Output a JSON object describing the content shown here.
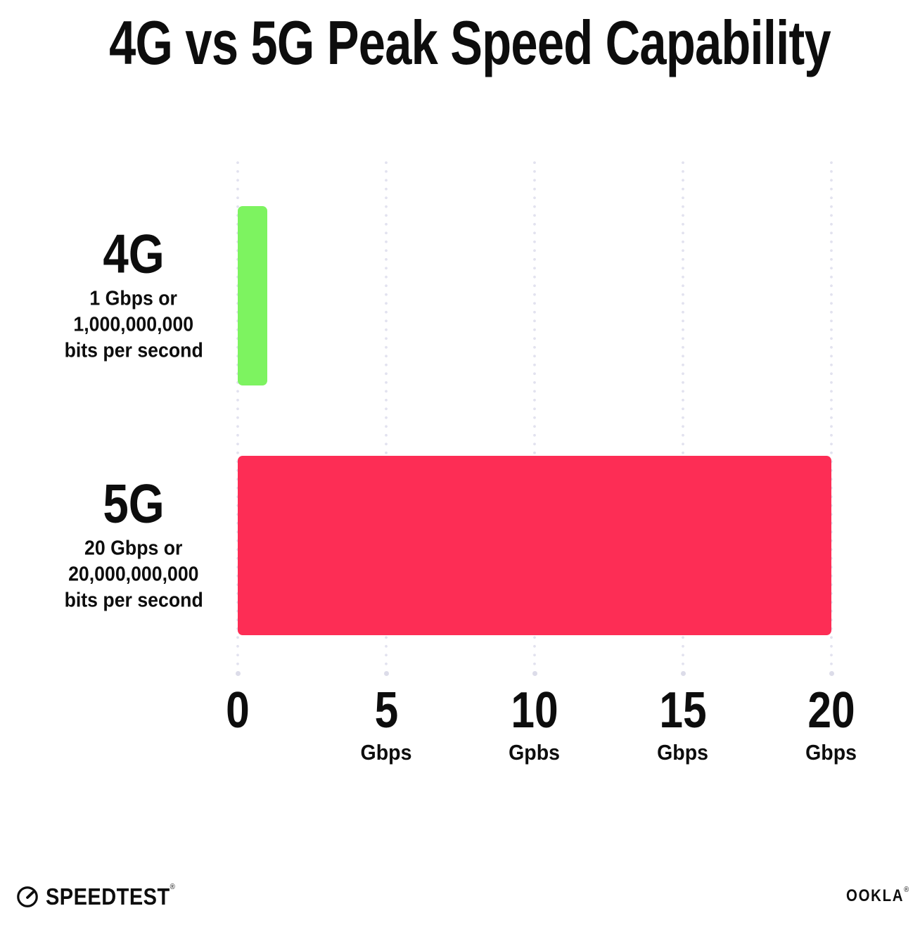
{
  "title": "4G vs 5G Peak Speed Capability",
  "chart_data": {
    "type": "bar",
    "orientation": "horizontal",
    "title": "4G vs 5G Peak Speed Capability",
    "categories": [
      "4G",
      "5G"
    ],
    "values": [
      1,
      20
    ],
    "unit": "Gbps",
    "xlim": [
      0,
      20
    ],
    "grid": "vertical dotted gridlines at each tick, larger dot at bottom end",
    "legend": "none",
    "x_ticks": [
      {
        "value": 0,
        "label": "0",
        "unit_label": ""
      },
      {
        "value": 5,
        "label": "5",
        "unit_label": "Gbps"
      },
      {
        "value": 10,
        "label": "10",
        "unit_label": "Gpbs"
      },
      {
        "value": 15,
        "label": "15",
        "unit_label": "Gbps"
      },
      {
        "value": 20,
        "label": "20",
        "unit_label": "Gbps"
      }
    ],
    "bars": [
      {
        "name": "4G",
        "value": 1,
        "color": "#7df360",
        "description_lines": [
          "1 Gbps or",
          "1,000,000,000",
          "bits per second"
        ]
      },
      {
        "name": "5G",
        "value": 20,
        "color": "#fd2d55",
        "description_lines": [
          "20 Gbps or",
          "20,000,000,000",
          "bits per second"
        ]
      }
    ]
  },
  "footer": {
    "left_logo_text": "SPEEDTEST",
    "left_logo_mark": "®",
    "right_logo_text": "OOKLA",
    "right_logo_mark": "®"
  },
  "colors": {
    "bar_4g": "#7df360",
    "bar_5g": "#fd2d55",
    "text": "#0d0d0d",
    "grid_dot": "#e2e2ef",
    "grid_end_dot": "#dcdce9",
    "background": "#ffffff"
  }
}
